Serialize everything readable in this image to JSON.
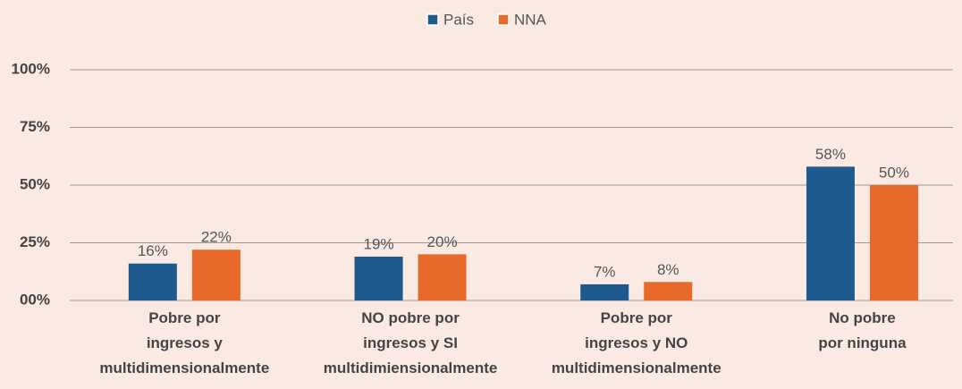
{
  "chart_data": {
    "type": "bar",
    "categories": [
      "Pobre por\ningresos y\nmultidimensionalmente",
      "NO pobre por\ningresos y SI\nmultidimiensionalmente",
      "Pobre por\ningresos y NO\nmultidimensionalmente",
      "No pobre\npor ninguna"
    ],
    "series": [
      {
        "name": "País",
        "color": "#1d5a8e",
        "values": [
          16,
          19,
          7,
          58
        ],
        "value_labels": [
          "16%",
          "19%",
          "7%",
          "58%"
        ]
      },
      {
        "name": "NNA",
        "color": "#e8692a",
        "values": [
          22,
          20,
          8,
          50
        ],
        "value_labels": [
          "22%",
          "20%",
          "8%",
          "50%"
        ]
      }
    ],
    "ylim": [
      0,
      100
    ],
    "yticks": [
      {
        "value": 0,
        "label": "00%"
      },
      {
        "value": 25,
        "label": "25%"
      },
      {
        "value": 50,
        "label": "50%"
      },
      {
        "value": 75,
        "label": "75%"
      },
      {
        "value": 100,
        "label": "100%"
      }
    ],
    "grid": true,
    "legend": "top"
  }
}
